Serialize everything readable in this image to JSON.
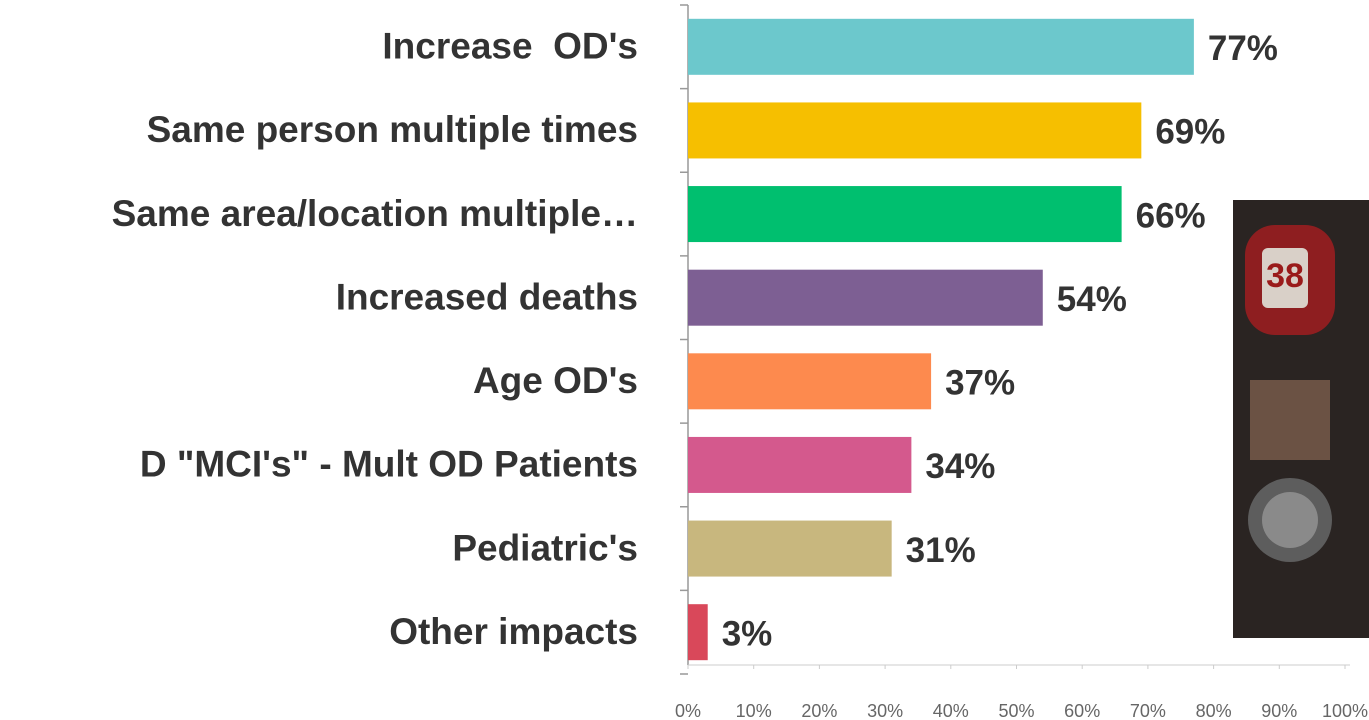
{
  "chart_data": {
    "type": "bar",
    "orientation": "horizontal",
    "categories": [
      "Increase  OD's",
      "Same person multiple times",
      "Same area/location multiple…",
      "Increased deaths",
      "Age OD's",
      "D \"MCI's\" - Mult OD Patients",
      "Pediatric's",
      "Other impacts"
    ],
    "values": [
      77,
      69,
      66,
      54,
      37,
      34,
      31,
      3
    ],
    "value_labels": [
      "77%",
      "69%",
      "66%",
      "54%",
      "37%",
      "34%",
      "31%",
      "3%"
    ],
    "colors": [
      "#6cc8cc",
      "#f6bf00",
      "#00bf6f",
      "#7d5f93",
      "#fd8a4e",
      "#d4598d",
      "#c8b77e",
      "#d9485a"
    ],
    "xlim": [
      0,
      100
    ],
    "xticks": [
      {
        "value": 0,
        "label": "0%"
      },
      {
        "value": 10,
        "label": "10%"
      },
      {
        "value": 20,
        "label": "20%"
      },
      {
        "value": 30,
        "label": "30%"
      },
      {
        "value": 40,
        "label": "40%"
      },
      {
        "value": 50,
        "label": "50%"
      },
      {
        "value": 60,
        "label": "60%"
      },
      {
        "value": 70,
        "label": "70%"
      },
      {
        "value": 80,
        "label": "80%"
      },
      {
        "value": 90,
        "label": "90%"
      },
      {
        "value": 100,
        "label": "100%"
      }
    ],
    "grid": false
  }
}
